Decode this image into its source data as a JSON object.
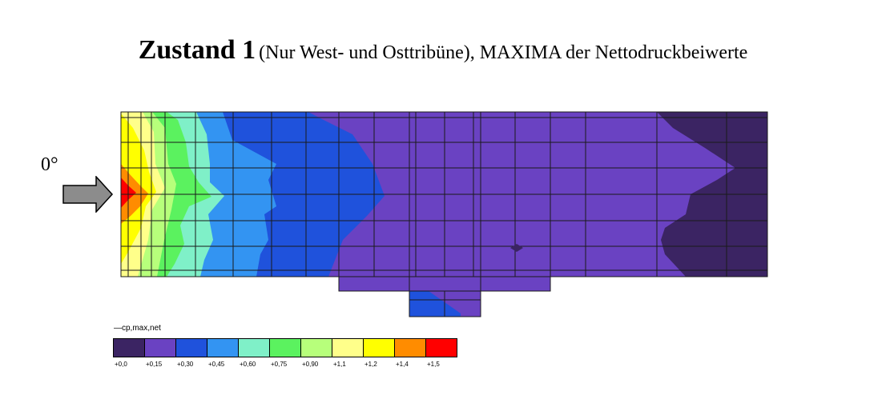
{
  "title": {
    "bold": "Zustand 1",
    "rest": "(Nur West- und Osttribüne), MAXIMA der Nettodruckbeiwerte"
  },
  "wind_direction": "0°",
  "legend": {
    "title": "—cp,max,net",
    "colors": [
      "#3b2463",
      "#6a42c2",
      "#1f52dc",
      "#3394f2",
      "#7ff0c8",
      "#5bf25f",
      "#b7ff7b",
      "#ffff8a",
      "#ffff00",
      "#ff8c00",
      "#ff0000"
    ],
    "labels": [
      "+0,0",
      "+0,15",
      "+0,30",
      "+0,45",
      "+0,60",
      "+0,75",
      "+0,90",
      "+1,1",
      "+1,2",
      "+1,4",
      "+1,5"
    ]
  },
  "icons": {
    "arrow": "right-arrow-icon"
  }
}
